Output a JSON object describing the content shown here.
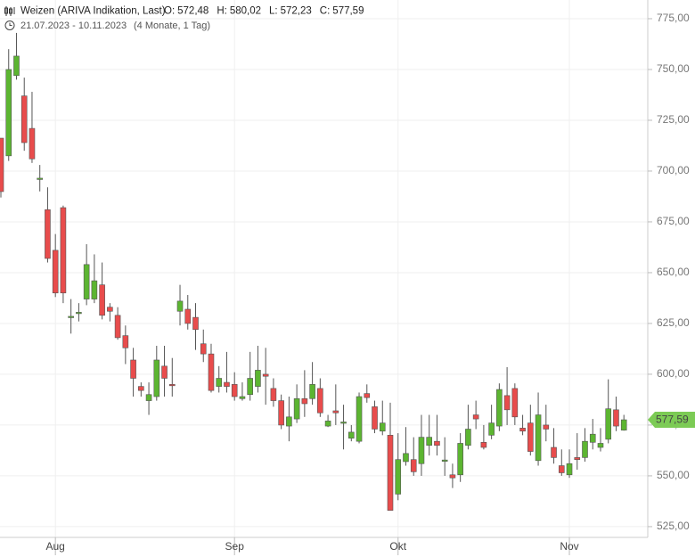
{
  "chart_data": {
    "type": "candlestick",
    "title": "Weizen (ARIVA Indikation, Last)",
    "summary": [
      {
        "label": "O:",
        "value": "572,48"
      },
      {
        "label": "H:",
        "value": "580,02"
      },
      {
        "label": "L:",
        "value": "572,23"
      },
      {
        "label": "C:",
        "value": "577,59"
      }
    ],
    "date_range": "21.07.2023 - 10.11.2023",
    "duration": "(4 Monate, 1 Tag)",
    "last_label": {
      "value": 577.59,
      "label": "577,59"
    },
    "up_color": "#5cb531",
    "down_color": "#e84c4c",
    "tag_color": "#7ccb55",
    "grid": true,
    "categories": [
      null,
      null,
      null,
      null,
      null,
      null,
      null,
      "Aug",
      null,
      null,
      null,
      null,
      null,
      null,
      null,
      null,
      null,
      null,
      null,
      null,
      null,
      null,
      null,
      null,
      null,
      null,
      null,
      null,
      null,
      null,
      "Sep",
      null,
      null,
      null,
      null,
      null,
      null,
      null,
      null,
      null,
      null,
      null,
      null,
      null,
      null,
      null,
      null,
      null,
      null,
      null,
      null,
      "Okt",
      null,
      null,
      null,
      null,
      null,
      null,
      null,
      null,
      null,
      null,
      null,
      null,
      null,
      null,
      null,
      null,
      null,
      null,
      null,
      null,
      null,
      "Nov",
      null,
      null,
      null,
      null,
      null,
      null,
      null
    ],
    "open": [
      716.2,
      707.5,
      747,
      737,
      721,
      696,
      681,
      661,
      682,
      628,
      630,
      637,
      637,
      644,
      633,
      629,
      619,
      607,
      594,
      587,
      589,
      604,
      595,
      631,
      632,
      628,
      615,
      610,
      594,
      596,
      595,
      588,
      590,
      594,
      600,
      593,
      587,
      574.5,
      578,
      588,
      588,
      593,
      574.5,
      582,
      576,
      568.5,
      567,
      590.5,
      584,
      572,
      570,
      541,
      557,
      558,
      556,
      565,
      567,
      557.5,
      550.5,
      550.5,
      565,
      580,
      566.5,
      570,
      574.5,
      589.5,
      593,
      573.5,
      576,
      557.5,
      575,
      564,
      555,
      550.5,
      559,
      559,
      566.5,
      564,
      568,
      582.5,
      572.48
    ],
    "high": [
      716,
      760,
      768,
      746,
      739,
      703,
      692,
      669,
      683,
      637,
      635,
      664,
      659,
      655,
      635,
      633,
      624,
      613,
      596,
      596,
      614,
      614,
      608,
      644,
      639,
      635,
      622,
      615,
      604,
      611,
      601,
      596,
      611,
      614,
      613,
      598,
      590,
      589,
      595,
      602,
      606,
      598,
      580,
      595,
      585,
      575,
      591,
      595,
      587,
      587,
      586,
      571,
      574,
      569,
      580,
      580,
      580,
      569,
      556,
      571,
      585,
      587,
      575,
      585,
      595.5,
      603.5,
      595.5,
      580,
      585,
      591,
      585,
      573.5,
      563,
      563,
      571,
      573.5,
      578,
      573.5,
      597.5,
      589,
      580.02
    ],
    "low": [
      687,
      705,
      745,
      710,
      704,
      690,
      655,
      638,
      635,
      620,
      626,
      634,
      635,
      627,
      626,
      617,
      605,
      589,
      589,
      580,
      587,
      589,
      589,
      624,
      622,
      612,
      606,
      591,
      591,
      591,
      587,
      587,
      587,
      591,
      585,
      584,
      573,
      567,
      576,
      579,
      585,
      579,
      574,
      575,
      563,
      567,
      566,
      586,
      571,
      570,
      533,
      538,
      555,
      550,
      550,
      560,
      560,
      550,
      544,
      547,
      563,
      573,
      563,
      568,
      572,
      575,
      575,
      570,
      560,
      555,
      567,
      556,
      550,
      549,
      553,
      557,
      563,
      562,
      566,
      572,
      572.23
    ],
    "close": [
      689.9,
      750,
      756.6,
      714,
      706,
      696.5,
      657,
      640,
      640,
      628.5,
      630.5,
      654,
      646,
      629,
      631,
      618,
      613,
      598,
      592,
      590,
      607,
      598,
      594.5,
      636,
      625,
      622,
      610,
      592,
      598,
      594,
      589,
      589,
      598,
      602,
      599,
      587,
      575,
      579,
      588,
      585.5,
      595,
      581,
      577,
      581,
      576.5,
      571.5,
      589,
      588.5,
      573,
      576,
      533,
      558,
      561,
      552,
      569,
      569,
      565,
      557.8,
      549,
      566,
      573,
      578,
      564,
      576,
      592.5,
      582.5,
      579,
      572,
      562,
      580,
      573,
      559,
      551.5,
      556,
      558,
      567,
      570.5,
      566,
      583,
      574.5,
      577.59
    ],
    "ylim": [
      519.7,
      784.2
    ],
    "yticks": [
      {
        "value": 525,
        "label": "525,00"
      },
      {
        "value": 550,
        "label": "550,00"
      },
      {
        "value": 575,
        "label": "575,00"
      },
      {
        "value": 600,
        "label": "600,00"
      },
      {
        "value": 625,
        "label": "625,00"
      },
      {
        "value": 650,
        "label": "650,00"
      },
      {
        "value": 675,
        "label": "675,00"
      },
      {
        "value": 700,
        "label": "700,00"
      },
      {
        "value": 725,
        "label": "725,00"
      },
      {
        "value": 750,
        "label": "750,00"
      },
      {
        "value": 775,
        "label": "775,00"
      }
    ]
  }
}
